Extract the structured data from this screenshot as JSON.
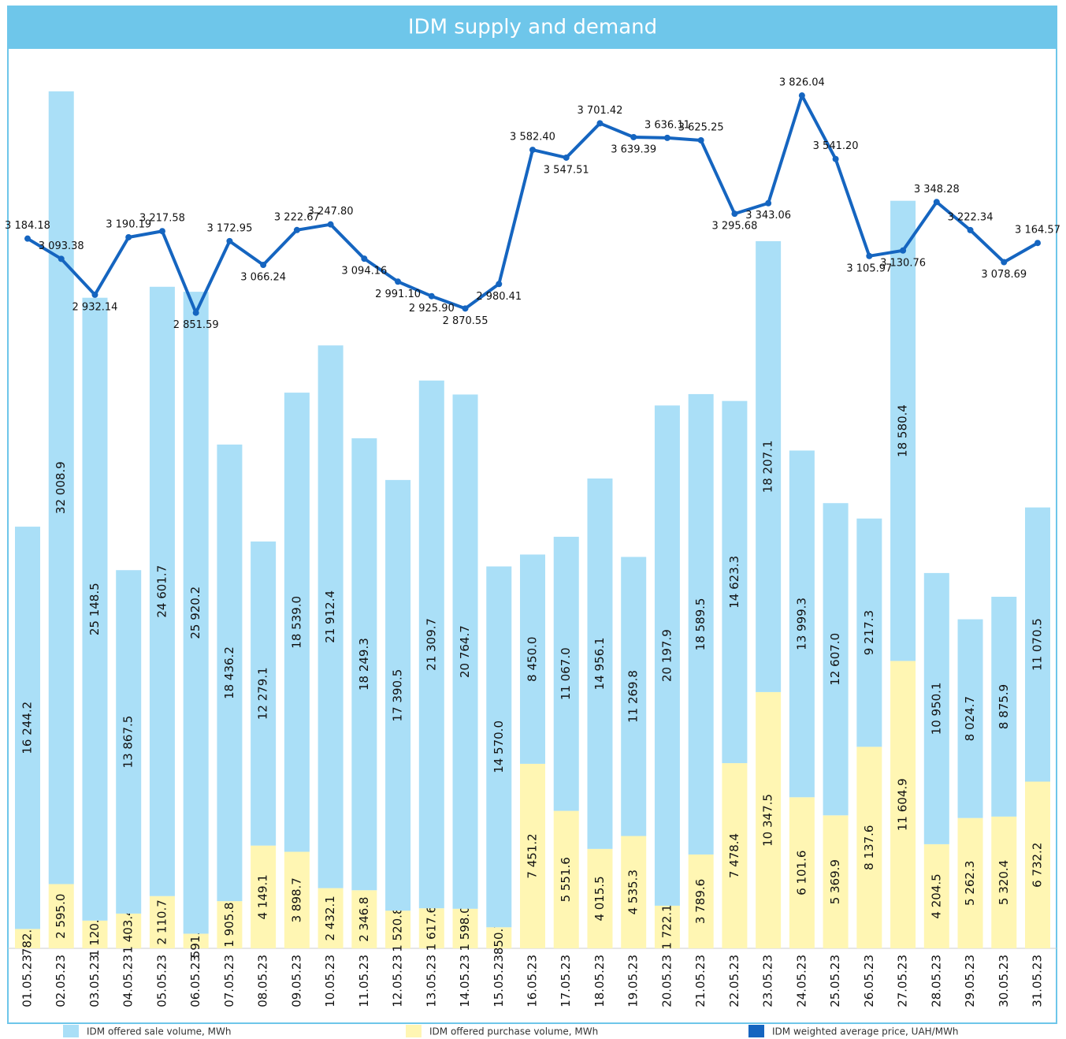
{
  "chart_data": {
    "type": "bar",
    "title": "IDM supply and demand",
    "categories": [
      "01.05.23",
      "02.05.23",
      "03.05.23",
      "04.05.23",
      "05.05.23",
      "06.05.23",
      "07.05.23",
      "08.05.23",
      "09.05.23",
      "10.05.23",
      "11.05.23",
      "12.05.23",
      "13.05.23",
      "14.05.23",
      "15.05.23",
      "16.05.23",
      "17.05.23",
      "18.05.23",
      "19.05.23",
      "20.05.23",
      "21.05.23",
      "22.05.23",
      "23.05.23",
      "24.05.23",
      "25.05.23",
      "26.05.23",
      "27.05.23",
      "28.05.23",
      "29.05.23",
      "30.05.23",
      "31.05.23"
    ],
    "ylim": [
      0,
      36000
    ],
    "y2lim": [
      0,
      4000
    ],
    "stacked": true,
    "series": [
      {
        "name": "IDM offered sale volume, MWh",
        "color": "#aadff7",
        "type": "bar",
        "values": [
          16244.2,
          32008.9,
          25148.5,
          13867.5,
          24601.7,
          25920.2,
          18436.2,
          12279.1,
          18539.0,
          21912.4,
          18249.3,
          17390.5,
          21309.7,
          20764.7,
          14570.0,
          8450.0,
          11067.0,
          14956.1,
          11269.8,
          20197.9,
          18589.5,
          14623.3,
          18207.1,
          13999.3,
          12607.0,
          9217.3,
          18580.4,
          10950.1,
          8024.7,
          8875.9,
          11070.5
        ],
        "value_labels": [
          "16 244.2",
          "32 008.9",
          "25 148.5",
          "13 867.5",
          "24 601.7",
          "25 920.2",
          "18 436.2",
          "12 279.1",
          "18 539.0",
          "21 912.4",
          "18 249.3",
          "17 390.5",
          "21 309.7",
          "20 764.7",
          "14 570.0",
          "8 450.0",
          "11 067.0",
          "14 956.1",
          "11 269.8",
          "20 197.9",
          "18 589.5",
          "14 623.3",
          "18 207.1",
          "13 999.3",
          "12 607.0",
          "9 217.3",
          "18 580.4",
          "10 950.1",
          "8 024.7",
          "8 875.9",
          "11 070.5"
        ]
      },
      {
        "name": "IDM offered purchase volume, MWh",
        "color": "#fff6b3",
        "type": "bar",
        "values": [
          782.2,
          2595.0,
          1120.8,
          1403.4,
          2110.7,
          591.3,
          1905.8,
          4149.1,
          3898.7,
          2432.1,
          2346.8,
          1520.8,
          1617.6,
          1598.0,
          850.7,
          7451.2,
          5551.6,
          4015.5,
          4535.3,
          1722.1,
          3789.6,
          7478.4,
          10347.5,
          6101.6,
          5369.9,
          8137.6,
          11604.9,
          4204.5,
          5262.3,
          5320.4,
          6732.2
        ],
        "value_labels": [
          "782.2",
          "2 595.0",
          "1 120.8",
          "1 403.4",
          "2 110.7",
          "591.3",
          "1 905.8",
          "4 149.1",
          "3 898.7",
          "2 432.1",
          "2 346.8",
          "1 520.8",
          "1 617.6",
          "1 598.0",
          "850.7",
          "7 451.2",
          "5 551.6",
          "4 015.5",
          "4 535.3",
          "1 722.1",
          "3 789.6",
          "7 478.4",
          "10 347.5",
          "6 101.6",
          "5 369.9",
          "8 137.6",
          "11 604.9",
          "4 204.5",
          "5 262.3",
          "5 320.4",
          "6 732.2"
        ]
      },
      {
        "name": "IDM weighted average price, UAH/MWh",
        "color": "#1565c0",
        "type": "line",
        "axis": "y2",
        "values": [
          3184.18,
          3093.38,
          2932.14,
          3190.19,
          3217.58,
          2851.59,
          3172.95,
          3066.24,
          3222.67,
          3247.8,
          3094.16,
          2991.1,
          2925.9,
          2870.55,
          2980.41,
          3582.4,
          3547.51,
          3701.42,
          3639.39,
          3636.11,
          3625.25,
          3295.68,
          3343.06,
          3826.04,
          3541.2,
          3105.97,
          3130.76,
          3348.28,
          3222.34,
          3078.69,
          3164.57
        ],
        "value_labels": [
          "3 184.18",
          "3 093.38",
          "2 932.14",
          "3 190.19",
          "3 217.58",
          "2 851.59",
          "3 172.95",
          "3 066.24",
          "3 222.67",
          "3 247.80",
          "3 094.16",
          "2 991.10",
          "2 925.90",
          "2 870.55",
          "2 980.41",
          "3 582.40",
          "3 547.51",
          "3 701.42",
          "3 639.39",
          "3 636.11",
          "3 625.25",
          "3 295.68",
          "3 343.06",
          "3 826.04",
          "3 541.20",
          "3 105.97",
          "3 130.76",
          "3 348.28",
          "3 222.34",
          "3 078.69",
          "3 164.57"
        ]
      }
    ],
    "legend": "bottom"
  }
}
